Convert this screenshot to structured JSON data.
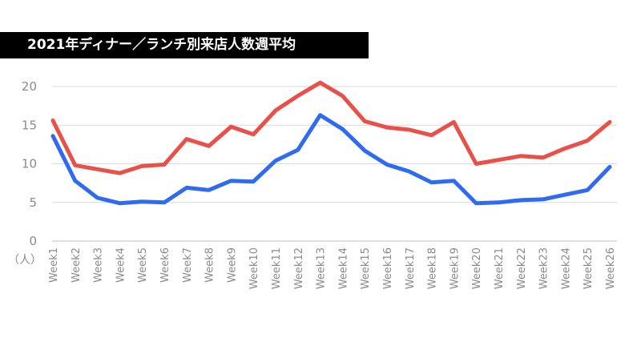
{
  "chart_data": {
    "type": "line",
    "title": "2021年ディナー／ランチ別来店人数週平均",
    "ylabel": "（人）",
    "ylim": [
      0,
      20
    ],
    "yticks": [
      0,
      5,
      10,
      15,
      20
    ],
    "grid": true,
    "categories": [
      "Week1",
      "Week2",
      "Week3",
      "Week4",
      "Week5",
      "Week6",
      "Week7",
      "Week8",
      "Week9",
      "Week10",
      "Week11",
      "Week12",
      "Week13",
      "Week14",
      "Week15",
      "Week16",
      "Week17",
      "Week18",
      "Week19",
      "Week20",
      "Week21",
      "Week22",
      "Week23",
      "Week24",
      "Week25",
      "Week26"
    ],
    "series": [
      {
        "color": "#e8504a",
        "values": [
          15.6,
          9.8,
          9.3,
          8.8,
          9.7,
          9.9,
          13.2,
          12.3,
          14.8,
          13.8,
          16.9,
          18.8,
          20.5,
          18.8,
          15.5,
          14.7,
          14.4,
          13.7,
          15.4,
          10.0,
          10.5,
          11.0,
          10.8,
          12.0,
          13.0,
          15.4
        ]
      },
      {
        "color": "#2f6bf0",
        "values": [
          13.6,
          7.8,
          5.6,
          4.9,
          5.1,
          5.0,
          6.9,
          6.6,
          7.8,
          7.7,
          10.4,
          11.8,
          16.3,
          14.5,
          11.7,
          9.9,
          9.0,
          7.6,
          7.8,
          4.9,
          5.0,
          5.3,
          5.4,
          6.0,
          6.6,
          9.6
        ]
      }
    ]
  }
}
